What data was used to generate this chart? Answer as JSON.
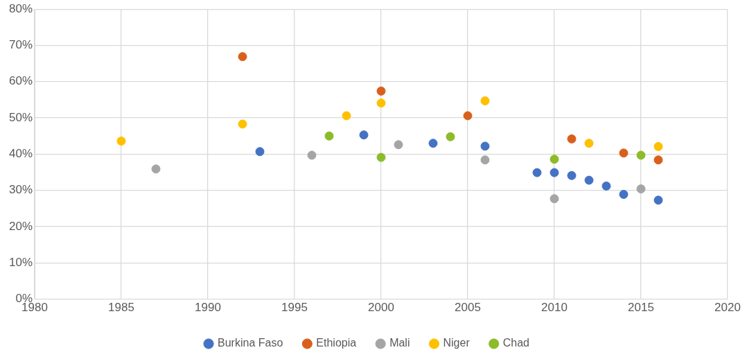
{
  "chart_data": {
    "type": "scatter",
    "xlim": [
      1980,
      2020
    ],
    "xticks": [
      1980,
      1985,
      1990,
      1995,
      2000,
      2005,
      2010,
      2015,
      2020
    ],
    "ylim": [
      0,
      80
    ],
    "yticks": [
      {
        "value": 0,
        "label": "0%"
      },
      {
        "value": 10,
        "label": "10%"
      },
      {
        "value": 20,
        "label": "20%"
      },
      {
        "value": 30,
        "label": "30%"
      },
      {
        "value": 40,
        "label": "40%"
      },
      {
        "value": 50,
        "label": "50%"
      },
      {
        "value": 60,
        "label": "60%"
      },
      {
        "value": 70,
        "label": "70%"
      },
      {
        "value": 80,
        "label": "80%"
      }
    ],
    "grid": true,
    "legend": "bottom",
    "marker": "circle",
    "series": [
      {
        "name": "Burkina Faso",
        "color": "#4472c4",
        "x": [
          1993,
          1999,
          2003,
          2006,
          2009,
          2010,
          2011,
          2012,
          2013,
          2014,
          2016
        ],
        "values": [
          40.7,
          45.3,
          43.0,
          42.2,
          34.9,
          34.9,
          34.1,
          32.8,
          31.2,
          28.9,
          27.3
        ]
      },
      {
        "name": "Ethiopia",
        "color": "#d9601c",
        "x": [
          1992,
          2000,
          2005,
          2011,
          2014,
          2016
        ],
        "values": [
          66.9,
          57.4,
          50.6,
          44.2,
          40.3,
          38.4
        ]
      },
      {
        "name": "Mali",
        "color": "#a5a5a5",
        "x": [
          1987,
          1996,
          2001,
          2006,
          2010,
          2015
        ],
        "values": [
          35.9,
          39.7,
          42.6,
          38.4,
          27.7,
          30.4
        ]
      },
      {
        "name": "Niger",
        "color": "#ffc000",
        "x": [
          1985,
          1992,
          1998,
          2000,
          2006,
          2012,
          2016
        ],
        "values": [
          43.6,
          48.3,
          50.6,
          54.1,
          54.7,
          43.0,
          42.1
        ]
      },
      {
        "name": "Chad",
        "color": "#8cbc2a",
        "x": [
          1997,
          2000,
          2004,
          2010,
          2015
        ],
        "values": [
          45.0,
          39.1,
          44.8,
          38.6,
          39.7
        ]
      }
    ]
  }
}
